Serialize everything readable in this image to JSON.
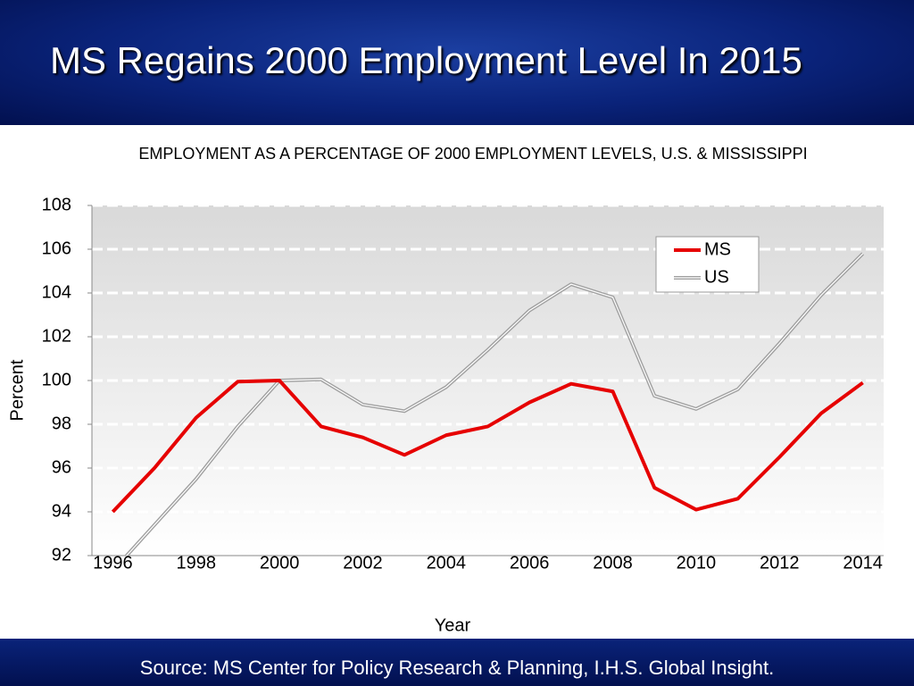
{
  "slide": {
    "title": "MS Regains 2000 Employment Level In 2015",
    "source": "Source: MS Center for Policy Research & Planning,  I.H.S. Global Insight."
  },
  "chart_data": {
    "type": "line",
    "title": "EMPLOYMENT AS A PERCENTAGE OF 2000 EMPLOYMENT LEVELS, U.S. & MISSISSIPPI",
    "x_label": "Year",
    "y_label": "Percent",
    "categories": [
      "1996",
      null,
      "1998",
      null,
      "2000",
      null,
      "2002",
      null,
      "2004",
      null,
      "2006",
      null,
      "2008",
      null,
      "2010",
      null,
      "2012",
      null,
      "2014"
    ],
    "series": [
      {
        "name": "MS",
        "color": "#e60000",
        "values": [
          94.0,
          96.0,
          98.3,
          99.95,
          100.0,
          97.9,
          97.4,
          96.6,
          97.5,
          97.9,
          99.0,
          99.85,
          99.5,
          95.1,
          94.1,
          94.6,
          96.5,
          98.5,
          99.9
        ]
      },
      {
        "name": "US",
        "color": "#a0a0a0",
        "values": [
          91.3,
          93.4,
          95.5,
          97.9,
          100.0,
          100.05,
          98.9,
          98.6,
          99.7,
          101.4,
          103.2,
          104.4,
          103.8,
          99.3,
          98.7,
          99.6,
          101.7,
          103.9,
          105.8
        ]
      }
    ],
    "ylim": [
      92,
      108
    ],
    "yticks": [
      92,
      94,
      96,
      98,
      100,
      102,
      104,
      106,
      108
    ],
    "grid": true,
    "legend": "upper right"
  }
}
